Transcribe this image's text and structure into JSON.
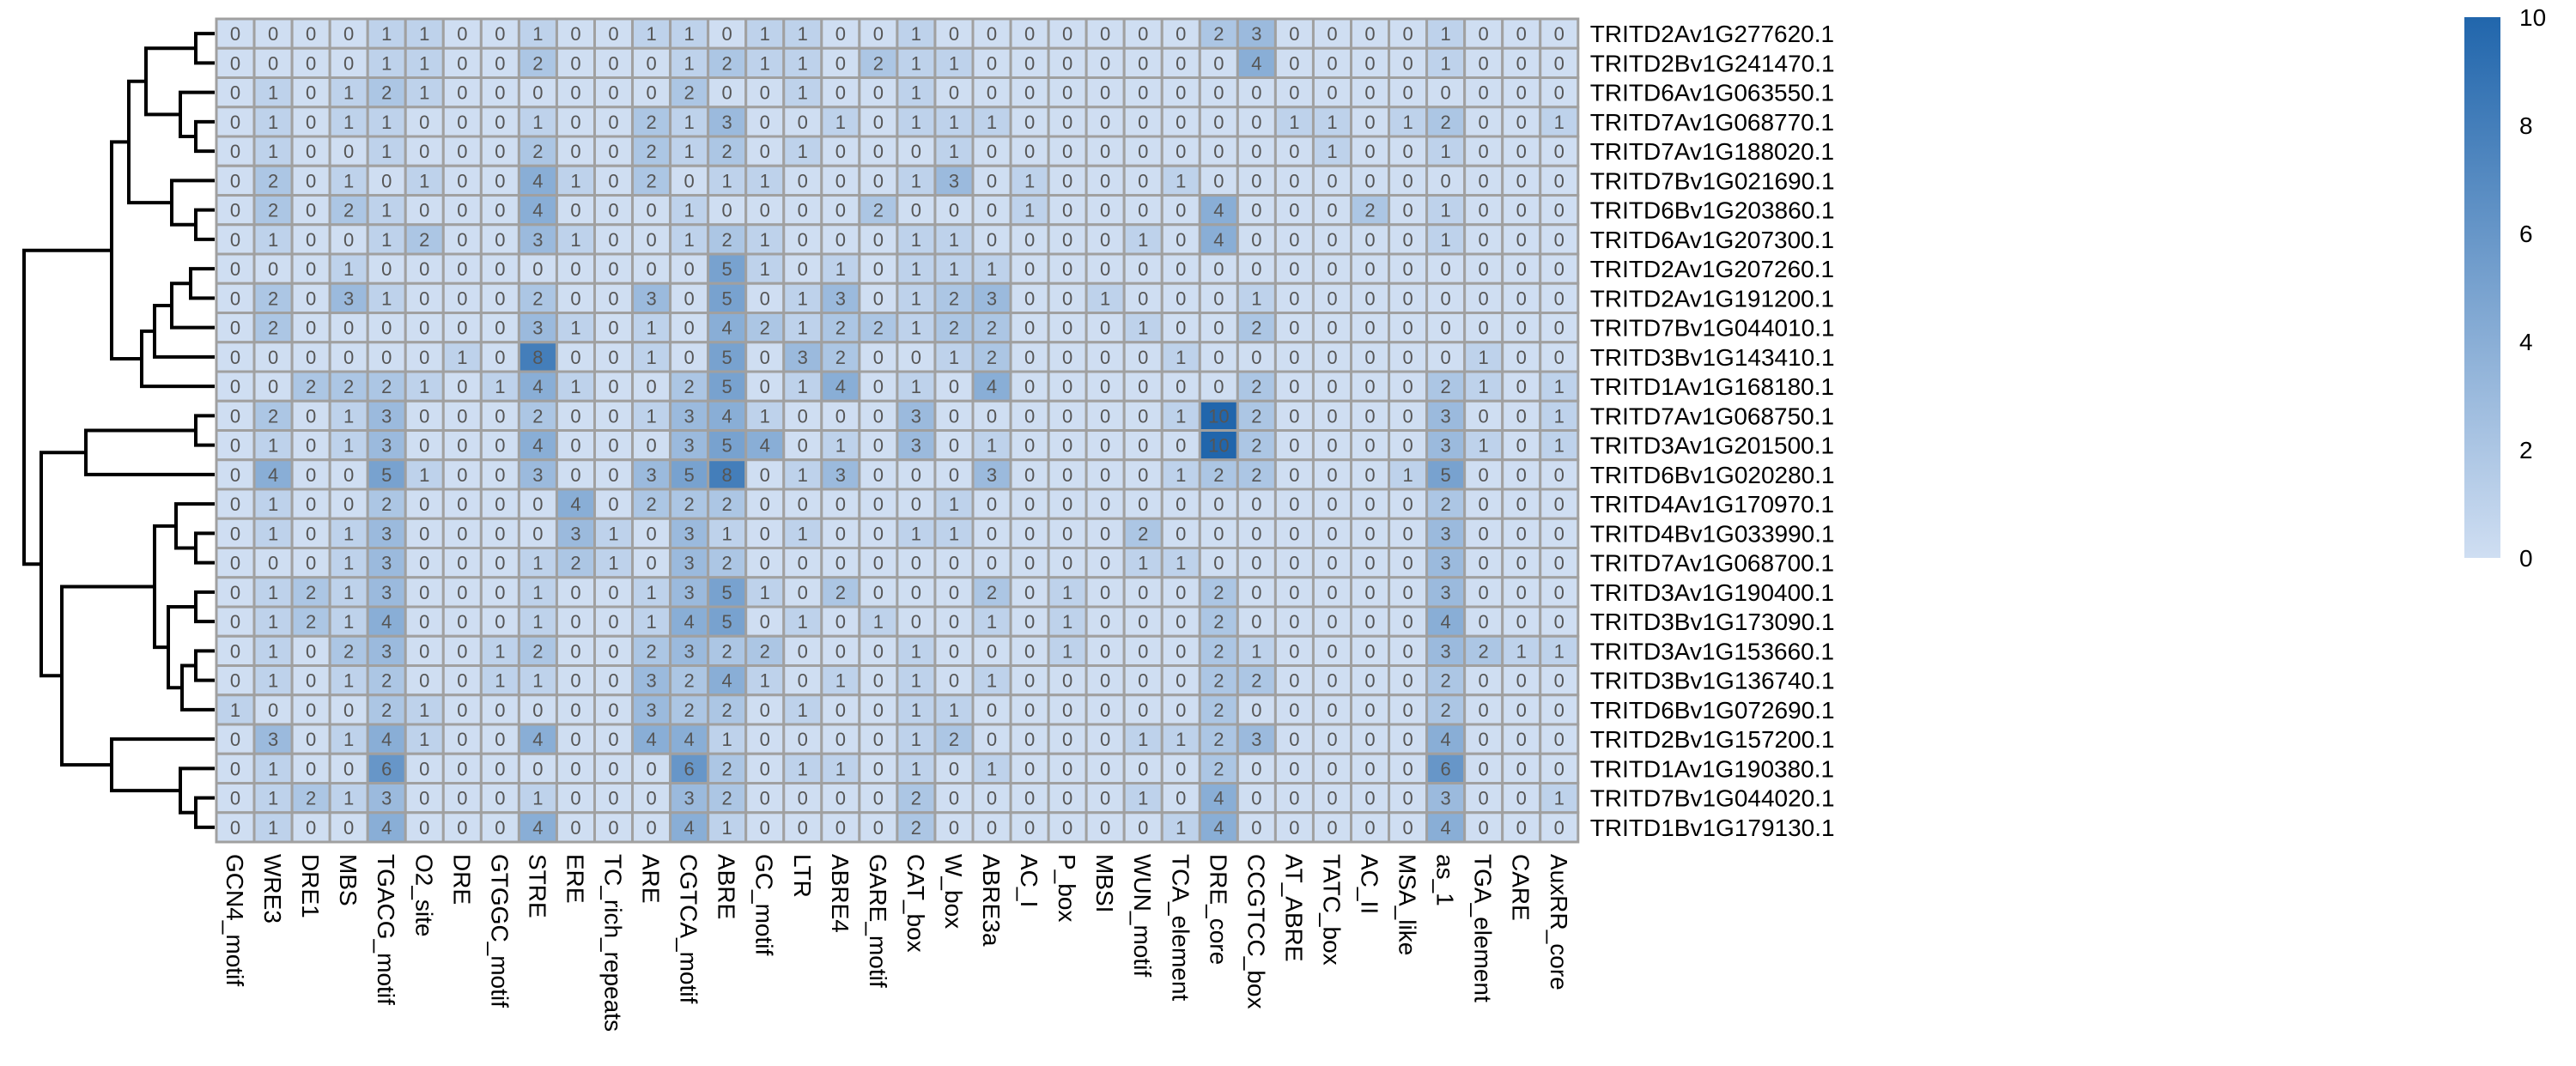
{
  "chart_data": {
    "type": "heatmap",
    "title": "",
    "xlabel": "",
    "ylabel": "",
    "columns": [
      "GCN4_motif",
      "WRE3",
      "DRE1",
      "MBS",
      "TGACG_motif",
      "O2_site",
      "DRE",
      "GTGGC_motif",
      "STRE",
      "ERE",
      "TC_rich_repeats",
      "ARE",
      "CGTCA_motif",
      "ABRE",
      "GC_motif",
      "LTR",
      "ABRE4",
      "GARE_motif",
      "CAT_box",
      "W_box",
      "ABRE3a",
      "AC_I",
      "P_box",
      "MBSI",
      "WUN_motif",
      "TCA_element",
      "DRE_core",
      "CCGTCC_box",
      "AT_ABRE",
      "TATC_box",
      "AC_II",
      "MSA_like",
      "as_1",
      "TGA_element",
      "CARE",
      "AuxRR_core"
    ],
    "rows": [
      "TRITD2Av1G277620.1",
      "TRITD2Bv1G241470.1",
      "TRITD6Av1G063550.1",
      "TRITD7Av1G068770.1",
      "TRITD7Av1G188020.1",
      "TRITD7Bv1G021690.1",
      "TRITD6Bv1G203860.1",
      "TRITD6Av1G207300.1",
      "TRITD2Av1G207260.1",
      "TRITD2Av1G191200.1",
      "TRITD7Bv1G044010.1",
      "TRITD3Bv1G143410.1",
      "TRITD1Av1G168180.1",
      "TRITD7Av1G068750.1",
      "TRITD3Av1G201500.1",
      "TRITD6Bv1G020280.1",
      "TRITD4Av1G170970.1",
      "TRITD4Bv1G033990.1",
      "TRITD7Av1G068700.1",
      "TRITD3Av1G190400.1",
      "TRITD3Bv1G173090.1",
      "TRITD3Av1G153660.1",
      "TRITD3Bv1G136740.1",
      "TRITD6Bv1G072690.1",
      "TRITD2Bv1G157200.1",
      "TRITD1Av1G190380.1",
      "TRITD7Bv1G044020.1",
      "TRITD1Bv1G179130.1"
    ],
    "values": [
      [
        0,
        0,
        0,
        0,
        1,
        1,
        0,
        0,
        1,
        0,
        0,
        1,
        1,
        0,
        1,
        1,
        0,
        0,
        1,
        0,
        0,
        0,
        0,
        0,
        0,
        0,
        2,
        3,
        0,
        0,
        0,
        0,
        1,
        0,
        0,
        0
      ],
      [
        0,
        0,
        0,
        0,
        1,
        1,
        0,
        0,
        2,
        0,
        0,
        0,
        1,
        2,
        1,
        1,
        0,
        2,
        1,
        1,
        0,
        0,
        0,
        0,
        0,
        0,
        0,
        4,
        0,
        0,
        0,
        0,
        1,
        0,
        0,
        0
      ],
      [
        0,
        1,
        0,
        1,
        2,
        1,
        0,
        0,
        0,
        0,
        0,
        0,
        2,
        0,
        0,
        1,
        0,
        0,
        1,
        0,
        0,
        0,
        0,
        0,
        0,
        0,
        0,
        0,
        0,
        0,
        0,
        0,
        0,
        0,
        0,
        0
      ],
      [
        0,
        1,
        0,
        1,
        1,
        0,
        0,
        0,
        1,
        0,
        0,
        2,
        1,
        3,
        0,
        0,
        1,
        0,
        1,
        1,
        1,
        0,
        0,
        0,
        0,
        0,
        0,
        0,
        1,
        1,
        0,
        1,
        2,
        0,
        0,
        1
      ],
      [
        0,
        1,
        0,
        0,
        1,
        0,
        0,
        0,
        2,
        0,
        0,
        2,
        1,
        2,
        0,
        1,
        0,
        0,
        0,
        1,
        0,
        0,
        0,
        0,
        0,
        0,
        0,
        0,
        0,
        1,
        0,
        0,
        1,
        0,
        0,
        0
      ],
      [
        0,
        2,
        0,
        1,
        0,
        1,
        0,
        0,
        4,
        1,
        0,
        2,
        0,
        1,
        1,
        0,
        0,
        0,
        1,
        3,
        0,
        1,
        0,
        0,
        0,
        1,
        0,
        0,
        0,
        0,
        0,
        0,
        0,
        0,
        0,
        0
      ],
      [
        0,
        2,
        0,
        2,
        1,
        0,
        0,
        0,
        4,
        0,
        0,
        0,
        1,
        0,
        0,
        0,
        0,
        2,
        0,
        0,
        0,
        1,
        0,
        0,
        0,
        0,
        4,
        0,
        0,
        0,
        2,
        0,
        1,
        0,
        0,
        0
      ],
      [
        0,
        1,
        0,
        0,
        1,
        2,
        0,
        0,
        3,
        1,
        0,
        0,
        1,
        2,
        1,
        0,
        0,
        0,
        1,
        1,
        0,
        0,
        0,
        0,
        1,
        0,
        4,
        0,
        0,
        0,
        0,
        0,
        1,
        0,
        0,
        0
      ],
      [
        0,
        0,
        0,
        1,
        0,
        0,
        0,
        0,
        0,
        0,
        0,
        0,
        0,
        5,
        1,
        0,
        1,
        0,
        1,
        1,
        1,
        0,
        0,
        0,
        0,
        0,
        0,
        0,
        0,
        0,
        0,
        0,
        0,
        0,
        0,
        0
      ],
      [
        0,
        2,
        0,
        3,
        1,
        0,
        0,
        0,
        2,
        0,
        0,
        3,
        0,
        5,
        0,
        1,
        3,
        0,
        1,
        2,
        3,
        0,
        0,
        1,
        0,
        0,
        0,
        1,
        0,
        0,
        0,
        0,
        0,
        0,
        0,
        0
      ],
      [
        0,
        2,
        0,
        0,
        0,
        0,
        0,
        0,
        3,
        1,
        0,
        1,
        0,
        4,
        2,
        1,
        2,
        2,
        1,
        2,
        2,
        0,
        0,
        0,
        1,
        0,
        0,
        2,
        0,
        0,
        0,
        0,
        0,
        0,
        0,
        0
      ],
      [
        0,
        0,
        0,
        0,
        0,
        0,
        1,
        0,
        8,
        0,
        0,
        1,
        0,
        5,
        0,
        3,
        2,
        0,
        0,
        1,
        2,
        0,
        0,
        0,
        0,
        1,
        0,
        0,
        0,
        0,
        0,
        0,
        0,
        1,
        0,
        0
      ],
      [
        0,
        0,
        2,
        2,
        2,
        1,
        0,
        1,
        4,
        1,
        0,
        0,
        2,
        5,
        0,
        1,
        4,
        0,
        1,
        0,
        4,
        0,
        0,
        0,
        0,
        0,
        0,
        2,
        0,
        0,
        0,
        0,
        2,
        1,
        0,
        1
      ],
      [
        0,
        2,
        0,
        1,
        3,
        0,
        0,
        0,
        2,
        0,
        0,
        1,
        3,
        4,
        1,
        0,
        0,
        0,
        3,
        0,
        0,
        0,
        0,
        0,
        0,
        1,
        10,
        2,
        0,
        0,
        0,
        0,
        3,
        0,
        0,
        1
      ],
      [
        0,
        1,
        0,
        1,
        3,
        0,
        0,
        0,
        4,
        0,
        0,
        0,
        3,
        5,
        4,
        0,
        1,
        0,
        3,
        0,
        1,
        0,
        0,
        0,
        0,
        0,
        10,
        2,
        0,
        0,
        0,
        0,
        3,
        1,
        0,
        1
      ],
      [
        0,
        4,
        0,
        0,
        5,
        1,
        0,
        0,
        3,
        0,
        0,
        3,
        5,
        8,
        0,
        1,
        3,
        0,
        0,
        0,
        3,
        0,
        0,
        0,
        0,
        1,
        2,
        2,
        0,
        0,
        0,
        1,
        5,
        0,
        0,
        0
      ],
      [
        0,
        1,
        0,
        0,
        2,
        0,
        0,
        0,
        0,
        4,
        0,
        2,
        2,
        2,
        0,
        0,
        0,
        0,
        0,
        1,
        0,
        0,
        0,
        0,
        0,
        0,
        0,
        0,
        0,
        0,
        0,
        0,
        2,
        0,
        0,
        0
      ],
      [
        0,
        1,
        0,
        1,
        3,
        0,
        0,
        0,
        0,
        3,
        1,
        0,
        3,
        1,
        0,
        1,
        0,
        0,
        1,
        1,
        0,
        0,
        0,
        0,
        2,
        0,
        0,
        0,
        0,
        0,
        0,
        0,
        3,
        0,
        0,
        0
      ],
      [
        0,
        0,
        0,
        1,
        3,
        0,
        0,
        0,
        1,
        2,
        1,
        0,
        3,
        2,
        0,
        0,
        0,
        0,
        0,
        0,
        0,
        0,
        0,
        0,
        1,
        1,
        0,
        0,
        0,
        0,
        0,
        0,
        3,
        0,
        0,
        0
      ],
      [
        0,
        1,
        2,
        1,
        3,
        0,
        0,
        0,
        1,
        0,
        0,
        1,
        3,
        5,
        1,
        0,
        2,
        0,
        0,
        0,
        2,
        0,
        1,
        0,
        0,
        0,
        2,
        0,
        0,
        0,
        0,
        0,
        3,
        0,
        0,
        0
      ],
      [
        0,
        1,
        2,
        1,
        4,
        0,
        0,
        0,
        1,
        0,
        0,
        1,
        4,
        5,
        0,
        1,
        0,
        1,
        0,
        0,
        1,
        0,
        1,
        0,
        0,
        0,
        2,
        0,
        0,
        0,
        0,
        0,
        4,
        0,
        0,
        0
      ],
      [
        0,
        1,
        0,
        2,
        3,
        0,
        0,
        1,
        2,
        0,
        0,
        2,
        3,
        2,
        2,
        0,
        0,
        0,
        1,
        0,
        0,
        0,
        1,
        0,
        0,
        0,
        2,
        1,
        0,
        0,
        0,
        0,
        3,
        2,
        1,
        1
      ],
      [
        0,
        1,
        0,
        1,
        2,
        0,
        0,
        1,
        1,
        0,
        0,
        3,
        2,
        4,
        1,
        0,
        1,
        0,
        1,
        0,
        1,
        0,
        0,
        0,
        0,
        0,
        2,
        2,
        0,
        0,
        0,
        0,
        2,
        0,
        0,
        0
      ],
      [
        1,
        0,
        0,
        0,
        2,
        1,
        0,
        0,
        0,
        0,
        0,
        3,
        2,
        2,
        0,
        1,
        0,
        0,
        1,
        1,
        0,
        0,
        0,
        0,
        0,
        0,
        2,
        0,
        0,
        0,
        0,
        0,
        2,
        0,
        0,
        0
      ],
      [
        0,
        3,
        0,
        1,
        4,
        1,
        0,
        0,
        4,
        0,
        0,
        4,
        4,
        1,
        0,
        0,
        0,
        0,
        1,
        2,
        0,
        0,
        0,
        0,
        1,
        1,
        2,
        3,
        0,
        0,
        0,
        0,
        4,
        0,
        0,
        0
      ],
      [
        0,
        1,
        0,
        0,
        6,
        0,
        0,
        0,
        0,
        0,
        0,
        0,
        6,
        2,
        0,
        1,
        1,
        0,
        1,
        0,
        1,
        0,
        0,
        0,
        0,
        0,
        2,
        0,
        0,
        0,
        0,
        0,
        6,
        0,
        0,
        0
      ],
      [
        0,
        1,
        2,
        1,
        3,
        0,
        0,
        0,
        1,
        0,
        0,
        0,
        3,
        2,
        0,
        0,
        0,
        0,
        2,
        0,
        0,
        0,
        0,
        0,
        1,
        0,
        4,
        0,
        0,
        0,
        0,
        0,
        3,
        0,
        0,
        1
      ],
      [
        0,
        1,
        0,
        0,
        4,
        0,
        0,
        0,
        4,
        0,
        0,
        0,
        4,
        1,
        0,
        0,
        0,
        0,
        2,
        0,
        0,
        0,
        0,
        0,
        0,
        1,
        4,
        0,
        0,
        0,
        0,
        0,
        4,
        0,
        0,
        0
      ]
    ],
    "color_scale": {
      "min": 0,
      "max": 10,
      "low_color": "#cfdef2",
      "high_color": "#2166ac"
    },
    "legend": {
      "placement": "right",
      "ticks": [
        0,
        2,
        4,
        6,
        8,
        10
      ]
    },
    "dendrogram": "rows",
    "grid": true,
    "cell_border_color": "#a0a0a0"
  }
}
